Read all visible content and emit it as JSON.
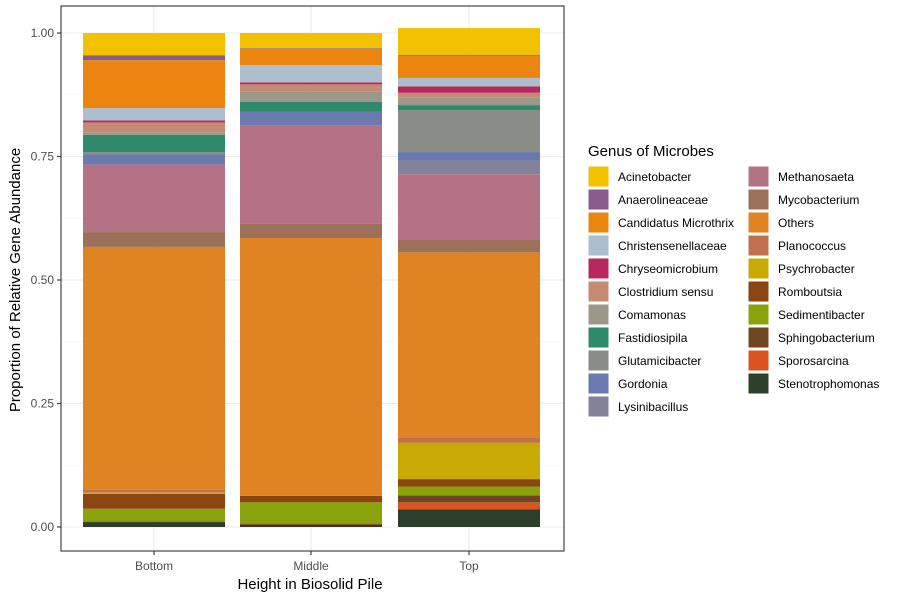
{
  "chart_data": {
    "type": "bar",
    "stacked": true,
    "categories": [
      "Bottom",
      "Middle",
      "Top"
    ],
    "xlabel": "Height in Biosolid Pile",
    "ylabel": "Proportion of Relative Gene Abundance",
    "ylim": [
      0,
      1
    ],
    "yticks": [
      0,
      0.25,
      0.5,
      0.75,
      1
    ],
    "ytick_labels": [
      "0.00",
      "0.25",
      "0.50",
      "0.75",
      "1.00"
    ],
    "grid": true,
    "legend": {
      "title": "Genus of Microbes",
      "position": "right",
      "columns": 2
    },
    "series": [
      {
        "name": "Stenotrophomonas",
        "color": "#2D3F2A",
        "values": [
          0.01,
          0.005,
          0.036
        ]
      },
      {
        "name": "Sporosarcina",
        "color": "#D9541E",
        "values": [
          0.002,
          0.002,
          0.014
        ]
      },
      {
        "name": "Sphingobacterium",
        "color": "#6E4722",
        "values": [
          0.0,
          0.0,
          0.014
        ]
      },
      {
        "name": "Sedimentibacter",
        "color": "#8AA30C",
        "values": [
          0.025,
          0.043,
          0.018
        ]
      },
      {
        "name": "Romboutsia",
        "color": "#8A4512",
        "values": [
          0.03,
          0.013,
          0.015
        ]
      },
      {
        "name": "Psychrobacter",
        "color": "#C9A906",
        "values": [
          0.003,
          0.0,
          0.074
        ]
      },
      {
        "name": "Planococcus",
        "color": "#C0704F",
        "values": [
          0.005,
          0.0,
          0.01
        ]
      },
      {
        "name": "Others",
        "color": "#E08322",
        "values": [
          0.492,
          0.522,
          0.375
        ]
      },
      {
        "name": "Mycobacterium",
        "color": "#9C7059",
        "values": [
          0.03,
          0.03,
          0.025
        ]
      },
      {
        "name": "Methanosaeta",
        "color": "#B47384",
        "values": [
          0.137,
          0.198,
          0.133
        ]
      },
      {
        "name": "Lysinibacillus",
        "color": "#838299",
        "values": [
          0.0,
          0.0,
          0.028
        ]
      },
      {
        "name": "Gordonia",
        "color": "#6A7AB0",
        "values": [
          0.02,
          0.028,
          0.017
        ]
      },
      {
        "name": "Glutamicibacter",
        "color": "#8A8C88",
        "values": [
          0.005,
          0.0,
          0.085
        ]
      },
      {
        "name": "Fastidiosipila",
        "color": "#2E8A6A",
        "values": [
          0.035,
          0.02,
          0.01
        ]
      },
      {
        "name": "Comamonas",
        "color": "#9C9788",
        "values": [
          0.005,
          0.02,
          0.015
        ]
      },
      {
        "name": "Clostridium sensu",
        "color": "#C58A72",
        "values": [
          0.02,
          0.015,
          0.01
        ]
      },
      {
        "name": "Chryseomicrobium",
        "color": "#B8285E",
        "values": [
          0.004,
          0.004,
          0.013
        ]
      },
      {
        "name": "Christensenellaceae",
        "color": "#ADBFCE",
        "values": [
          0.025,
          0.035,
          0.017
        ]
      },
      {
        "name": "Candidatus Microthrix",
        "color": "#EB850F",
        "values": [
          0.097,
          0.032,
          0.045
        ]
      },
      {
        "name": "Anaerolineaceae",
        "color": "#8B5A8D",
        "values": [
          0.01,
          0.002,
          0.002
        ]
      },
      {
        "name": "Acinetobacter",
        "color": "#F2C200",
        "values": [
          0.045,
          0.031,
          0.054
        ]
      }
    ]
  }
}
